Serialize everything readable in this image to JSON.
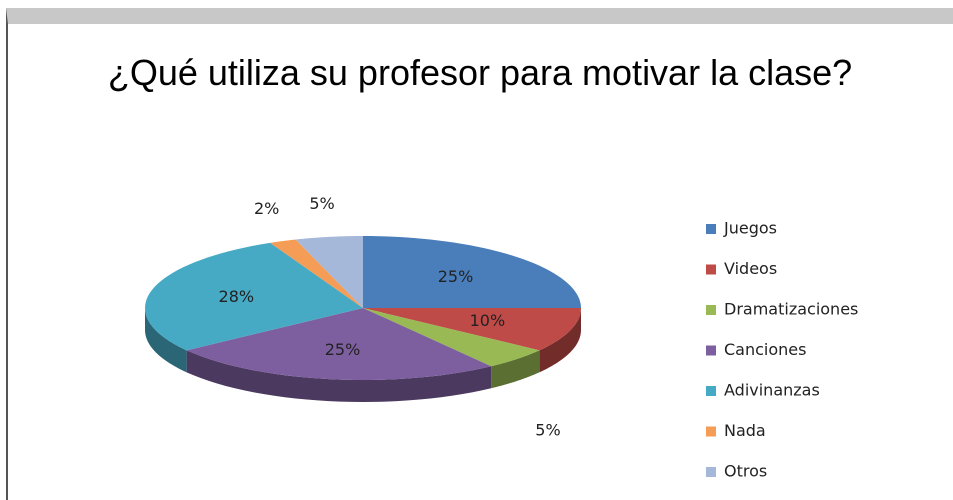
{
  "chart_data": {
    "type": "pie3d",
    "title": "¿Qué utiliza su profesor para motivar la clase?",
    "categories": [
      "Juegos",
      "Videos",
      "Dramatizaciones",
      "Canciones",
      "Adivinanzas",
      "Nada",
      "Otros"
    ],
    "values": [
      25,
      10,
      5,
      25,
      28,
      2,
      5
    ],
    "value_labels": [
      "25%",
      "10%",
      "5%",
      "25%",
      "28%",
      "2%",
      "5%"
    ],
    "colors": [
      "#4a7ebb",
      "#be4b48",
      "#98b954",
      "#7d5fa0",
      "#46aac5",
      "#f59d56",
      "#a5b8d9"
    ],
    "legend": "right"
  }
}
